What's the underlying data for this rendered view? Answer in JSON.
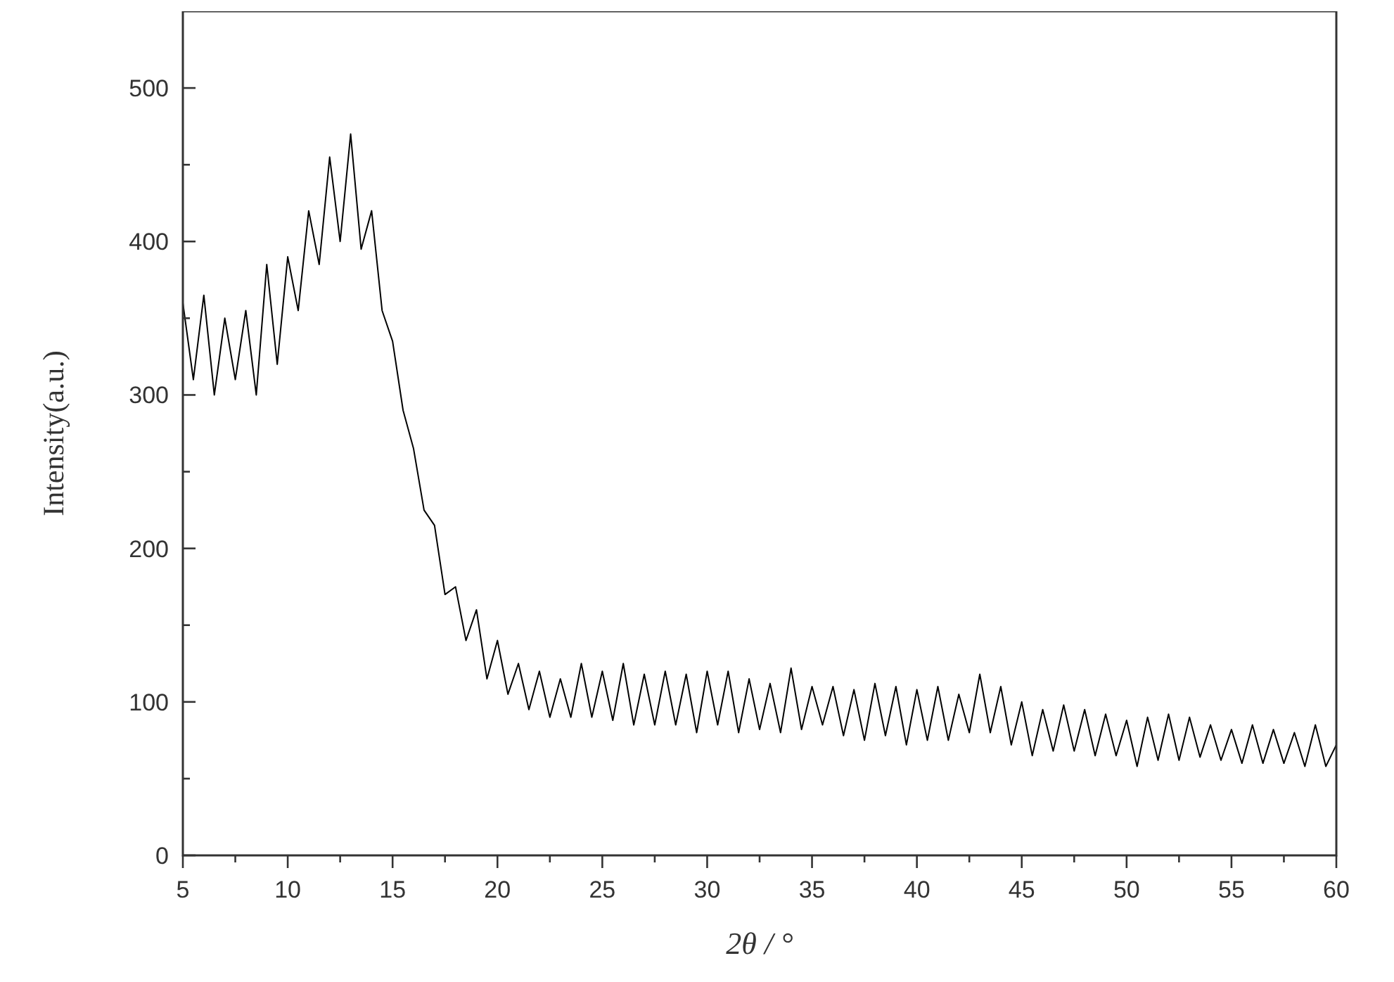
{
  "chart_data": {
    "type": "line",
    "xlabel": "2θ / °",
    "ylabel": "Intensity(a.u.)",
    "xlim": [
      5,
      60
    ],
    "ylim": [
      0,
      550
    ],
    "xticks": [
      5,
      {
        "value": 7.5,
        "label": null
      },
      10,
      {
        "value": 12.5,
        "label": null
      },
      15,
      {
        "value": 17.5,
        "label": null
      },
      20,
      {
        "value": 22.5,
        "label": null
      },
      25,
      {
        "value": 27.5,
        "label": null
      },
      30,
      {
        "value": 32.5,
        "label": null
      },
      35,
      {
        "value": 37.5,
        "label": null
      },
      40,
      {
        "value": 42.5,
        "label": null
      },
      45,
      {
        "value": 47.5,
        "label": null
      },
      50,
      {
        "value": 52.5,
        "label": null
      },
      55,
      {
        "value": 57.5,
        "label": null
      },
      60
    ],
    "yticks": [
      0,
      {
        "value": 50,
        "label": null
      },
      100,
      {
        "value": 150,
        "label": null
      },
      200,
      {
        "value": 250,
        "label": null
      },
      300,
      {
        "value": 350,
        "label": null
      },
      400,
      {
        "value": 450,
        "label": null
      },
      500
    ],
    "grid": false,
    "marker": "none",
    "line_style": "solid",
    "x": [
      5.0,
      5.5,
      6.0,
      6.5,
      7.0,
      7.5,
      8.0,
      8.5,
      9.0,
      9.5,
      10.0,
      10.5,
      11.0,
      11.5,
      12.0,
      12.5,
      13.0,
      13.5,
      14.0,
      14.5,
      15.0,
      15.5,
      16.0,
      16.5,
      17.0,
      17.5,
      18.0,
      18.5,
      19.0,
      19.5,
      20.0,
      20.5,
      21.0,
      21.5,
      22.0,
      22.5,
      23.0,
      23.5,
      24.0,
      24.5,
      25.0,
      25.5,
      26.0,
      26.5,
      27.0,
      27.5,
      28.0,
      28.5,
      29.0,
      29.5,
      30.0,
      30.5,
      31.0,
      31.5,
      32.0,
      32.5,
      33.0,
      33.5,
      34.0,
      34.5,
      35.0,
      35.5,
      36.0,
      36.5,
      37.0,
      37.5,
      38.0,
      38.5,
      39.0,
      39.5,
      40.0,
      40.5,
      41.0,
      41.5,
      42.0,
      42.5,
      43.0,
      43.5,
      44.0,
      44.5,
      45.0,
      45.5,
      46.0,
      46.5,
      47.0,
      47.5,
      48.0,
      48.5,
      49.0,
      49.5,
      50.0,
      50.5,
      51.0,
      51.5,
      52.0,
      52.5,
      53.0,
      53.5,
      54.0,
      54.5,
      55.0,
      55.5,
      56.0,
      56.5,
      57.0,
      57.5,
      58.0,
      58.5,
      59.0,
      59.5,
      60.0
    ],
    "series": [
      {
        "color": "#000000",
        "values": [
          360,
          310,
          365,
          300,
          350,
          310,
          355,
          300,
          385,
          320,
          390,
          355,
          420,
          385,
          455,
          400,
          470,
          395,
          420,
          355,
          335,
          290,
          265,
          225,
          215,
          170,
          175,
          140,
          160,
          115,
          140,
          105,
          125,
          95,
          120,
          90,
          115,
          90,
          125,
          90,
          120,
          88,
          125,
          85,
          118,
          85,
          120,
          85,
          118,
          80,
          120,
          85,
          120,
          80,
          115,
          82,
          112,
          80,
          122,
          82,
          110,
          85,
          110,
          78,
          108,
          75,
          112,
          78,
          110,
          72,
          108,
          75,
          110,
          75,
          105,
          80,
          118,
          80,
          110,
          72,
          100,
          65,
          95,
          68,
          98,
          68,
          95,
          65,
          92,
          65,
          88,
          58,
          90,
          62,
          92,
          62,
          90,
          64,
          85,
          62,
          82,
          60,
          85,
          60,
          82,
          60,
          80,
          58,
          85,
          58,
          72
        ]
      }
    ]
  }
}
